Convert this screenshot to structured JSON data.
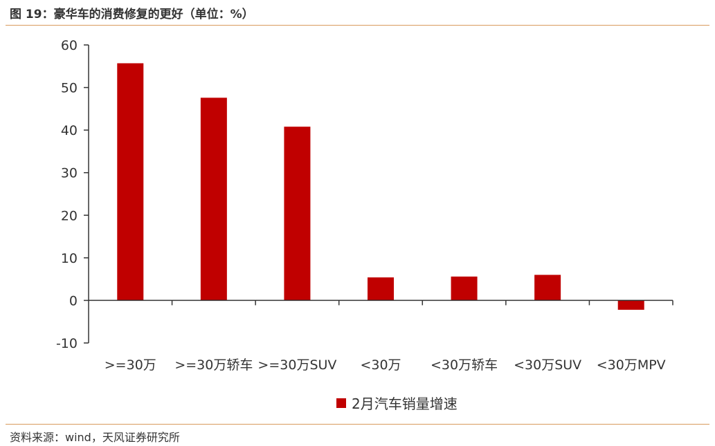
{
  "header": {
    "title": "图 19：豪华车的消费修复的更好（单位：%）"
  },
  "footer": {
    "source": "资料来源：wind，天风证券研究所"
  },
  "colors": {
    "bar": "#c00000",
    "axis": "#333333",
    "rule": "#d89a5c"
  },
  "chart_data": {
    "type": "bar",
    "categories": [
      ">=30万",
      ">=30万轿车",
      ">=30万SUV",
      "<30万",
      "<30万轿车",
      "<30万SUV",
      "<30万MPV"
    ],
    "series": [
      {
        "name": "2月汽车销量增速",
        "values": [
          55.7,
          47.6,
          40.8,
          5.4,
          5.6,
          6.0,
          -2.2
        ]
      }
    ],
    "ylim": [
      -10,
      60
    ],
    "yticks": [
      -10,
      0,
      10,
      20,
      30,
      40,
      50,
      60
    ],
    "title": "",
    "xlabel": "",
    "ylabel": "",
    "grid": false,
    "legend": "bottom-center"
  }
}
